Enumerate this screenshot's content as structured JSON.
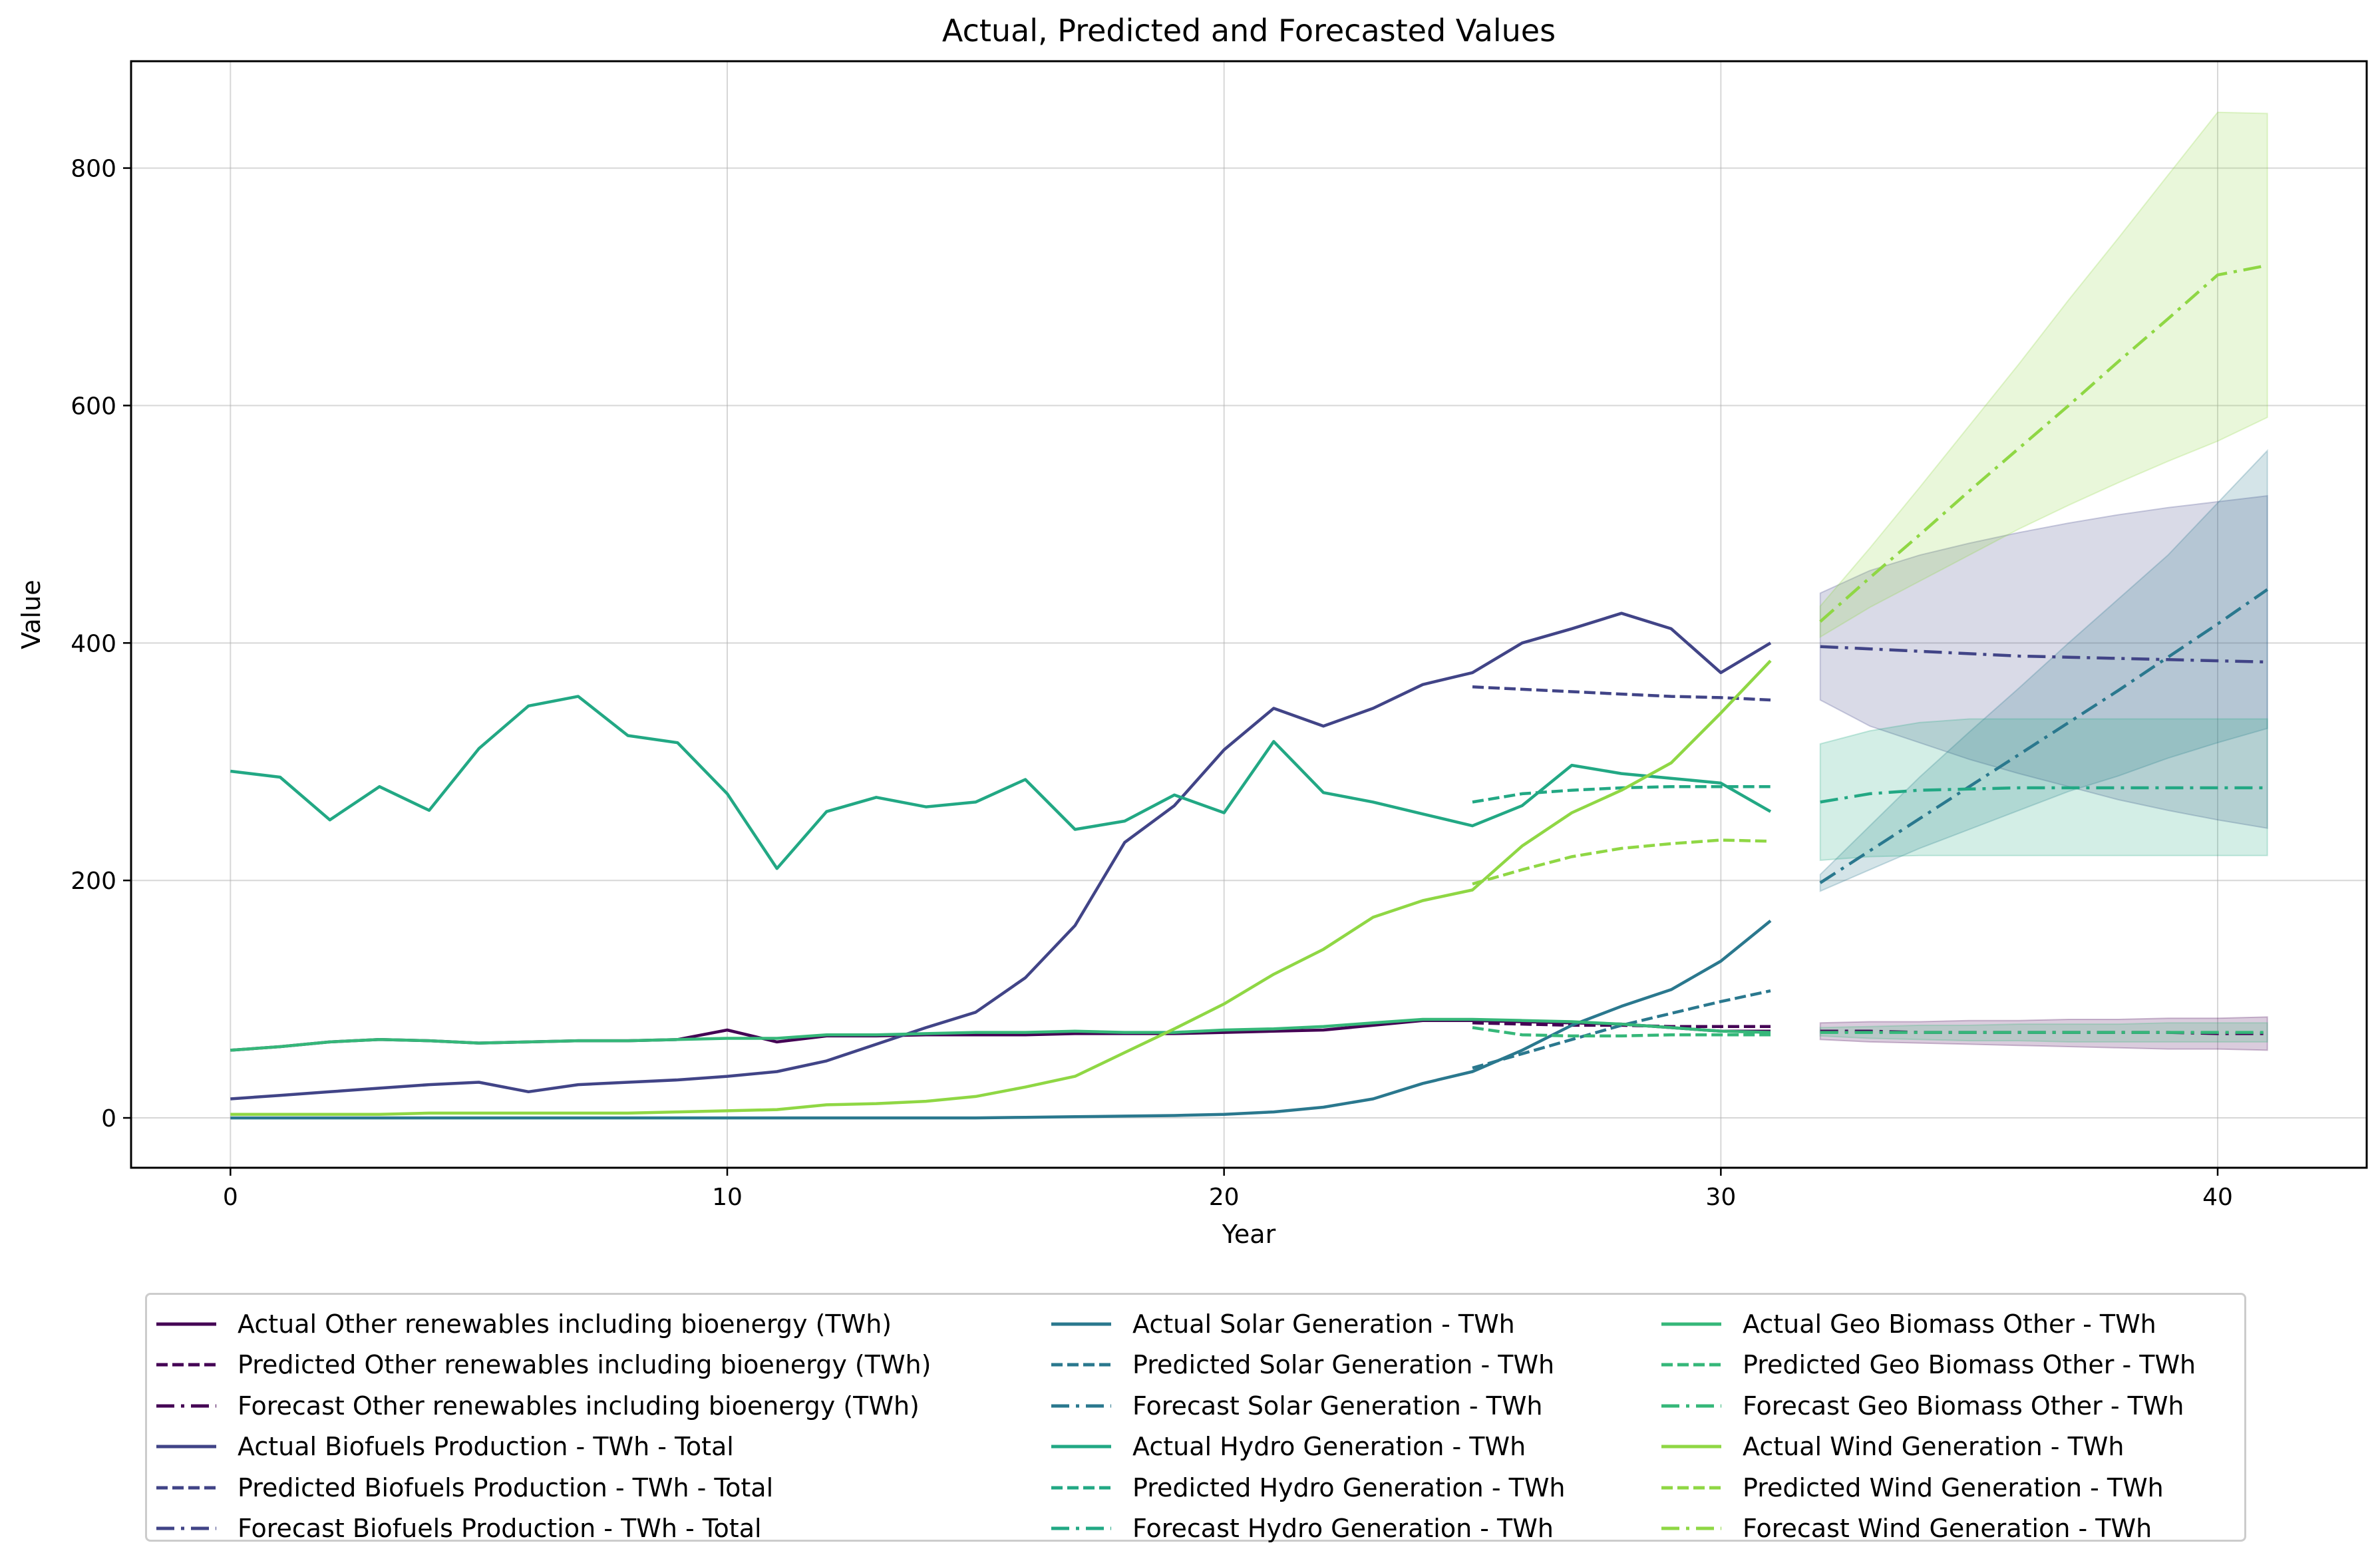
{
  "chart_data": {
    "type": "line",
    "title": "Actual, Predicted and Forecasted Values",
    "xlabel": "Year",
    "ylabel": "Value",
    "xlim": [
      -2,
      43
    ],
    "ylim": [
      -42,
      890
    ],
    "xticks": [
      0,
      10,
      20,
      30,
      40
    ],
    "yticks": [
      0,
      200,
      400,
      600,
      800
    ],
    "grid": true,
    "legend_placement": "below plot, 3 columns",
    "actual_x": [
      0,
      1,
      2,
      3,
      4,
      5,
      6,
      7,
      8,
      9,
      10,
      11,
      12,
      13,
      14,
      15,
      16,
      17,
      18,
      19,
      20,
      21,
      22,
      23,
      24,
      25,
      26,
      27,
      28,
      29,
      30,
      31
    ],
    "predicted_x": [
      25,
      26,
      27,
      28,
      29,
      30,
      31
    ],
    "forecast_x": [
      32,
      33,
      34,
      35,
      36,
      37,
      38,
      39,
      40,
      41
    ],
    "series": [
      {
        "name": "Other renewables including bioenergy (TWh)",
        "color": "#440154",
        "actual": [
          57,
          60,
          64,
          66,
          65,
          63,
          64,
          65,
          65,
          66,
          74,
          64,
          69,
          69,
          70,
          70,
          70,
          71,
          71,
          71,
          72,
          73,
          74,
          78,
          82,
          82,
          81,
          80,
          79,
          76,
          73,
          73
        ],
        "predicted": [
          80,
          79,
          78,
          78,
          77,
          77,
          77
        ],
        "forecast": [
          73,
          73,
          72,
          72,
          72,
          72,
          72,
          72,
          71,
          71
        ],
        "forecast_lower": [
          66,
          64,
          63,
          62,
          61,
          60,
          59,
          58,
          58,
          57
        ],
        "forecast_upper": [
          80,
          81,
          81,
          82,
          82,
          83,
          83,
          84,
          84,
          85
        ],
        "labels": {
          "actual": "Actual Other renewables including bioenergy (TWh)",
          "predicted": "Predicted Other renewables including bioenergy (TWh)",
          "forecast": "Forecast Other renewables including bioenergy (TWh)"
        }
      },
      {
        "name": "Biofuels Production - TWh - Total",
        "color": "#414487",
        "actual": [
          16,
          19,
          22,
          25,
          28,
          30,
          22,
          28,
          30,
          32,
          35,
          39,
          48,
          62,
          76,
          89,
          118,
          162,
          232,
          263,
          310,
          345,
          330,
          345,
          365,
          375,
          400,
          412,
          425,
          412,
          375,
          400
        ],
        "predicted": [
          363,
          361,
          359,
          357,
          355,
          354,
          352
        ],
        "forecast": [
          397,
          395,
          393,
          391,
          389,
          388,
          387,
          386,
          385,
          384
        ],
        "forecast_lower": [
          352,
          330,
          316,
          302,
          290,
          279,
          268,
          259,
          251,
          244
        ],
        "forecast_upper": [
          442,
          461,
          474,
          484,
          493,
          501,
          508,
          514,
          519,
          524
        ],
        "labels": {
          "actual": "Actual Biofuels Production - TWh - Total",
          "predicted": "Predicted Biofuels Production - TWh - Total",
          "forecast": "Forecast Biofuels Production - TWh - Total"
        }
      },
      {
        "name": "Solar Generation - TWh",
        "color": "#2a788e",
        "actual": [
          0,
          0,
          0,
          0,
          0,
          0,
          0,
          0,
          0,
          0,
          0,
          0,
          0,
          0,
          0,
          0,
          0.5,
          1,
          1.5,
          2,
          3,
          5,
          9,
          16,
          29,
          39,
          57,
          78,
          94,
          108,
          132,
          166
        ],
        "predicted": [
          42,
          54,
          66,
          78,
          88,
          98,
          107
        ],
        "forecast": [
          198,
          225,
          252,
          279,
          306,
          333,
          360,
          388,
          416,
          445
        ],
        "forecast_lower": [
          191,
          209,
          227,
          243,
          259,
          275,
          288,
          303,
          316,
          328
        ],
        "forecast_upper": [
          205,
          246,
          287,
          325,
          362,
          400,
          437,
          474,
          518,
          562
        ],
        "labels": {
          "actual": "Actual Solar Generation - TWh",
          "predicted": "Predicted Solar Generation - TWh",
          "forecast": "Forecast Solar Generation - TWh"
        }
      },
      {
        "name": "Hydro Generation - TWh",
        "color": "#22a884",
        "actual": [
          292,
          287,
          251,
          279,
          259,
          311,
          347,
          355,
          322,
          316,
          273,
          210,
          258,
          270,
          262,
          266,
          285,
          243,
          250,
          272,
          257,
          317,
          274,
          266,
          256,
          246,
          263,
          297,
          290,
          286,
          282,
          258
        ],
        "predicted": [
          266,
          273,
          276,
          278,
          279,
          279,
          279
        ],
        "forecast": [
          266,
          273,
          276,
          277,
          278,
          278,
          278,
          278,
          278,
          278
        ],
        "forecast_lower": [
          217,
          220,
          221,
          221,
          221,
          221,
          221,
          221,
          221,
          221
        ],
        "forecast_upper": [
          315,
          326,
          333,
          336,
          336,
          336,
          336,
          336,
          336,
          336
        ],
        "labels": {
          "actual": "Actual Hydro Generation - TWh",
          "predicted": "Predicted Hydro Generation - TWh",
          "forecast": "Forecast Hydro Generation - TWh"
        }
      },
      {
        "name": "Geo Biomass Other - TWh",
        "color": "#35b779",
        "actual": [
          57,
          60,
          64,
          66,
          65,
          63,
          64,
          65,
          65,
          66,
          67,
          67,
          70,
          70,
          71,
          72,
          72,
          73,
          72,
          72,
          74,
          75,
          77,
          80,
          83,
          83,
          82,
          81,
          79,
          76,
          73,
          72
        ],
        "predicted": [
          76,
          70,
          69,
          69,
          70,
          70,
          70
        ],
        "forecast": [
          72,
          72,
          72,
          72,
          72,
          72,
          72,
          72,
          72,
          72
        ],
        "forecast_lower": [
          69,
          67,
          66,
          65,
          65,
          64,
          64,
          64,
          64,
          64
        ],
        "forecast_upper": [
          76,
          77,
          78,
          78,
          79,
          79,
          79,
          80,
          80,
          80
        ],
        "labels": {
          "actual": "Actual Geo Biomass Other - TWh",
          "predicted": "Predicted Geo Biomass Other - TWh",
          "forecast": "Forecast Geo Biomass Other - TWh"
        }
      },
      {
        "name": "Wind Generation - TWh",
        "color": "#8fd744",
        "actual": [
          3,
          3,
          3,
          3,
          4,
          4,
          4,
          4,
          4,
          5,
          6,
          7,
          11,
          12,
          14,
          18,
          26,
          35,
          55,
          75,
          96,
          121,
          142,
          169,
          183,
          192,
          229,
          257,
          276,
          299,
          341,
          385
        ],
        "predicted": [
          197,
          209,
          220,
          227,
          231,
          234,
          233
        ],
        "forecast": [
          418,
          455,
          491,
          528,
          564,
          600,
          637,
          673,
          710,
          718
        ],
        "forecast_lower": [
          405,
          430,
          452,
          474,
          496,
          516,
          535,
          553,
          570,
          590
        ],
        "forecast_upper": [
          431,
          480,
          531,
          583,
          635,
          689,
          741,
          794,
          847,
          846
        ],
        "labels": {
          "actual": "Actual Wind Generation - TWh",
          "predicted": "Predicted Wind Generation - TWh",
          "forecast": "Forecast Wind Generation - TWh"
        }
      }
    ]
  }
}
